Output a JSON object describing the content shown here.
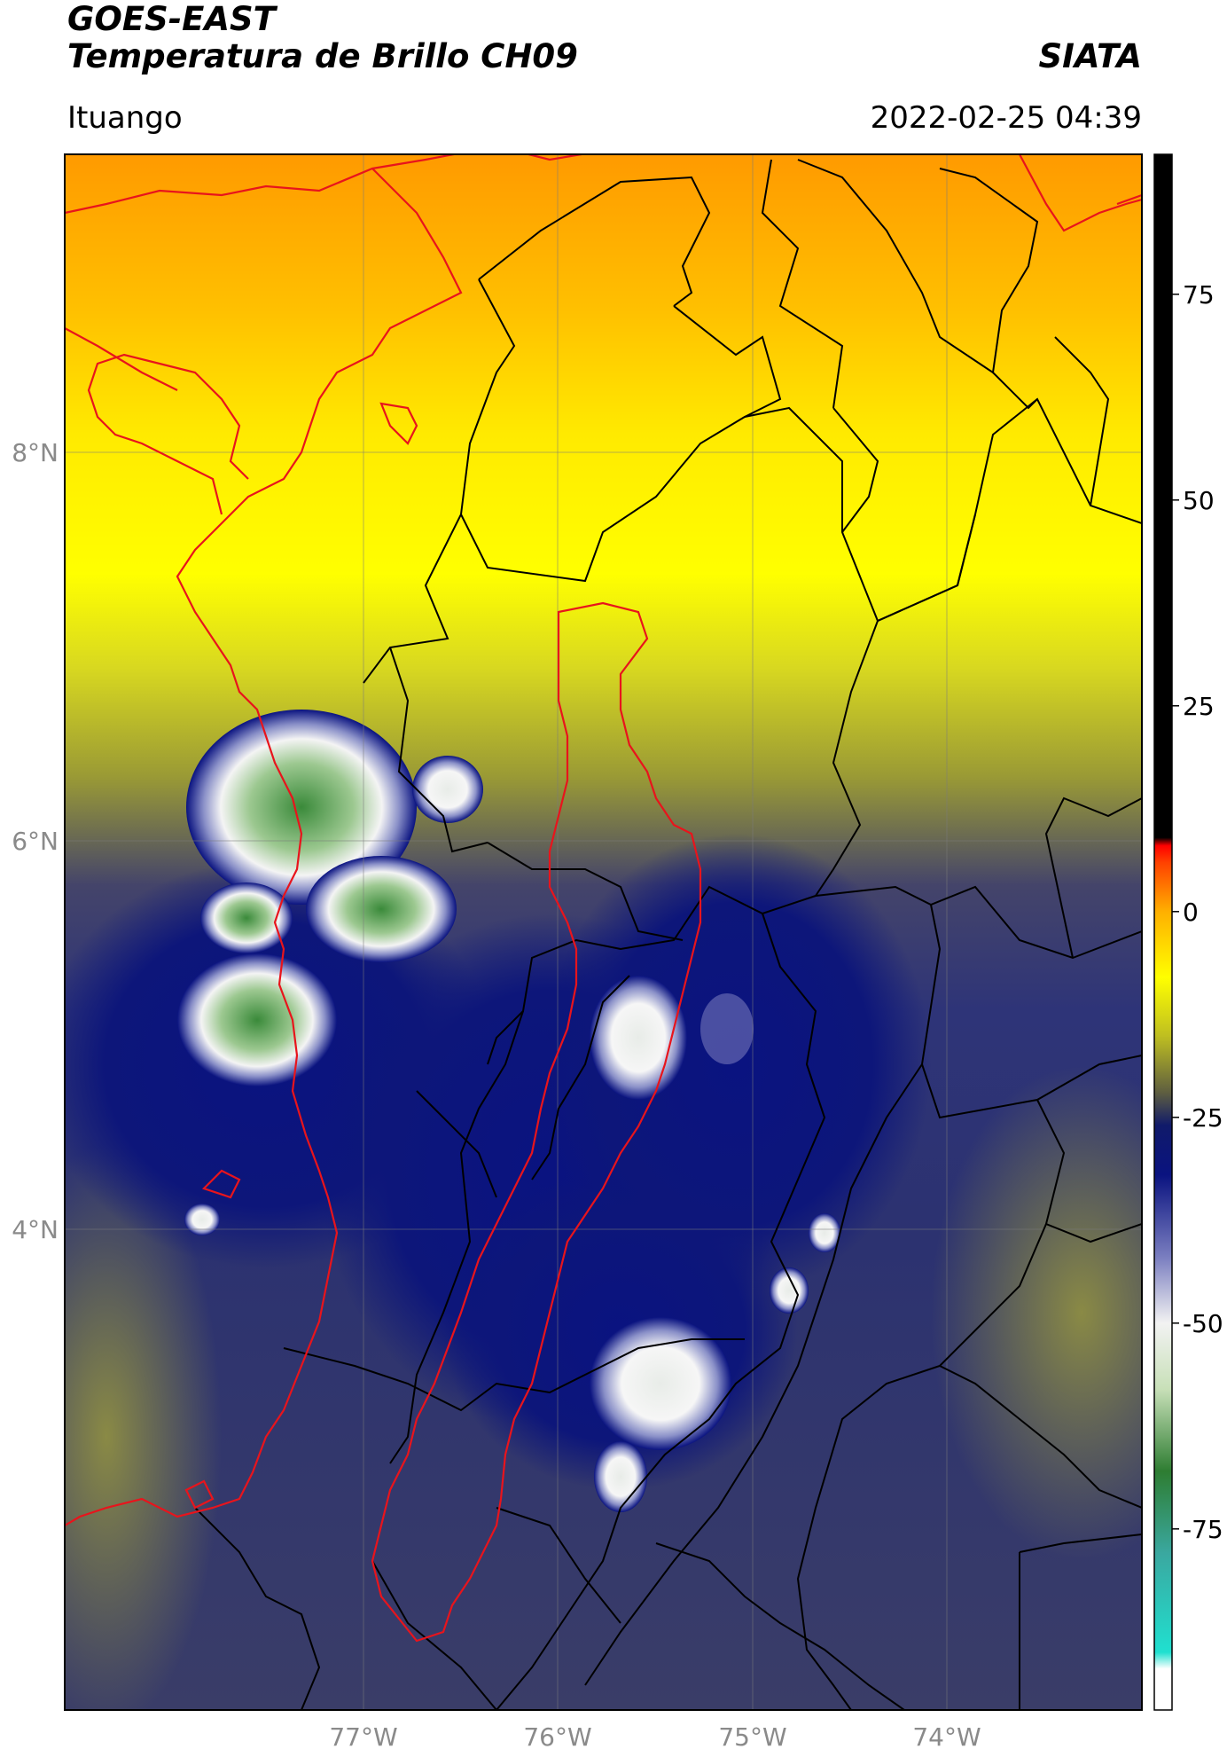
{
  "header": {
    "title": "GOES-EAST",
    "subtitle": "Temperatura de Brillo CH09",
    "organization": "SIATA",
    "region": "Ituango",
    "datetime": "2022-02-25 04:39"
  },
  "map": {
    "latitude_labels": [
      "8°N",
      "6°N",
      "4°N"
    ],
    "longitude_labels": [
      "77°W",
      "76°W",
      "75°W",
      "74°W"
    ],
    "border_colors": {
      "country": "#e8141c",
      "department": "#000000"
    }
  },
  "colorbar": {
    "ticks": [
      "75",
      "50",
      "25",
      "0",
      "-25",
      "-50",
      "-75"
    ],
    "range": [
      -97,
      92
    ],
    "stops": [
      {
        "value": -97,
        "color": "#ffffff"
      },
      {
        "value": -92,
        "color": "#ffffff"
      },
      {
        "value": -90,
        "color": "#20e0d0"
      },
      {
        "value": -78,
        "color": "#3aa8a0"
      },
      {
        "value": -68,
        "color": "#2e7d32"
      },
      {
        "value": -58,
        "color": "#c8e0b8"
      },
      {
        "value": -50,
        "color": "#f2f2f2"
      },
      {
        "value": -42,
        "color": "#7a7ec0"
      },
      {
        "value": -32,
        "color": "#0a1380"
      },
      {
        "value": -26,
        "color": "#101a6a"
      },
      {
        "value": -22,
        "color": "#5e5e40"
      },
      {
        "value": -15,
        "color": "#c0c020"
      },
      {
        "value": -8,
        "color": "#ffff00"
      },
      {
        "value": 0,
        "color": "#ffb000"
      },
      {
        "value": 6,
        "color": "#ff4000"
      },
      {
        "value": 8,
        "color": "#ff0000"
      },
      {
        "value": 9,
        "color": "#000000"
      },
      {
        "value": 92,
        "color": "#000000"
      }
    ]
  }
}
